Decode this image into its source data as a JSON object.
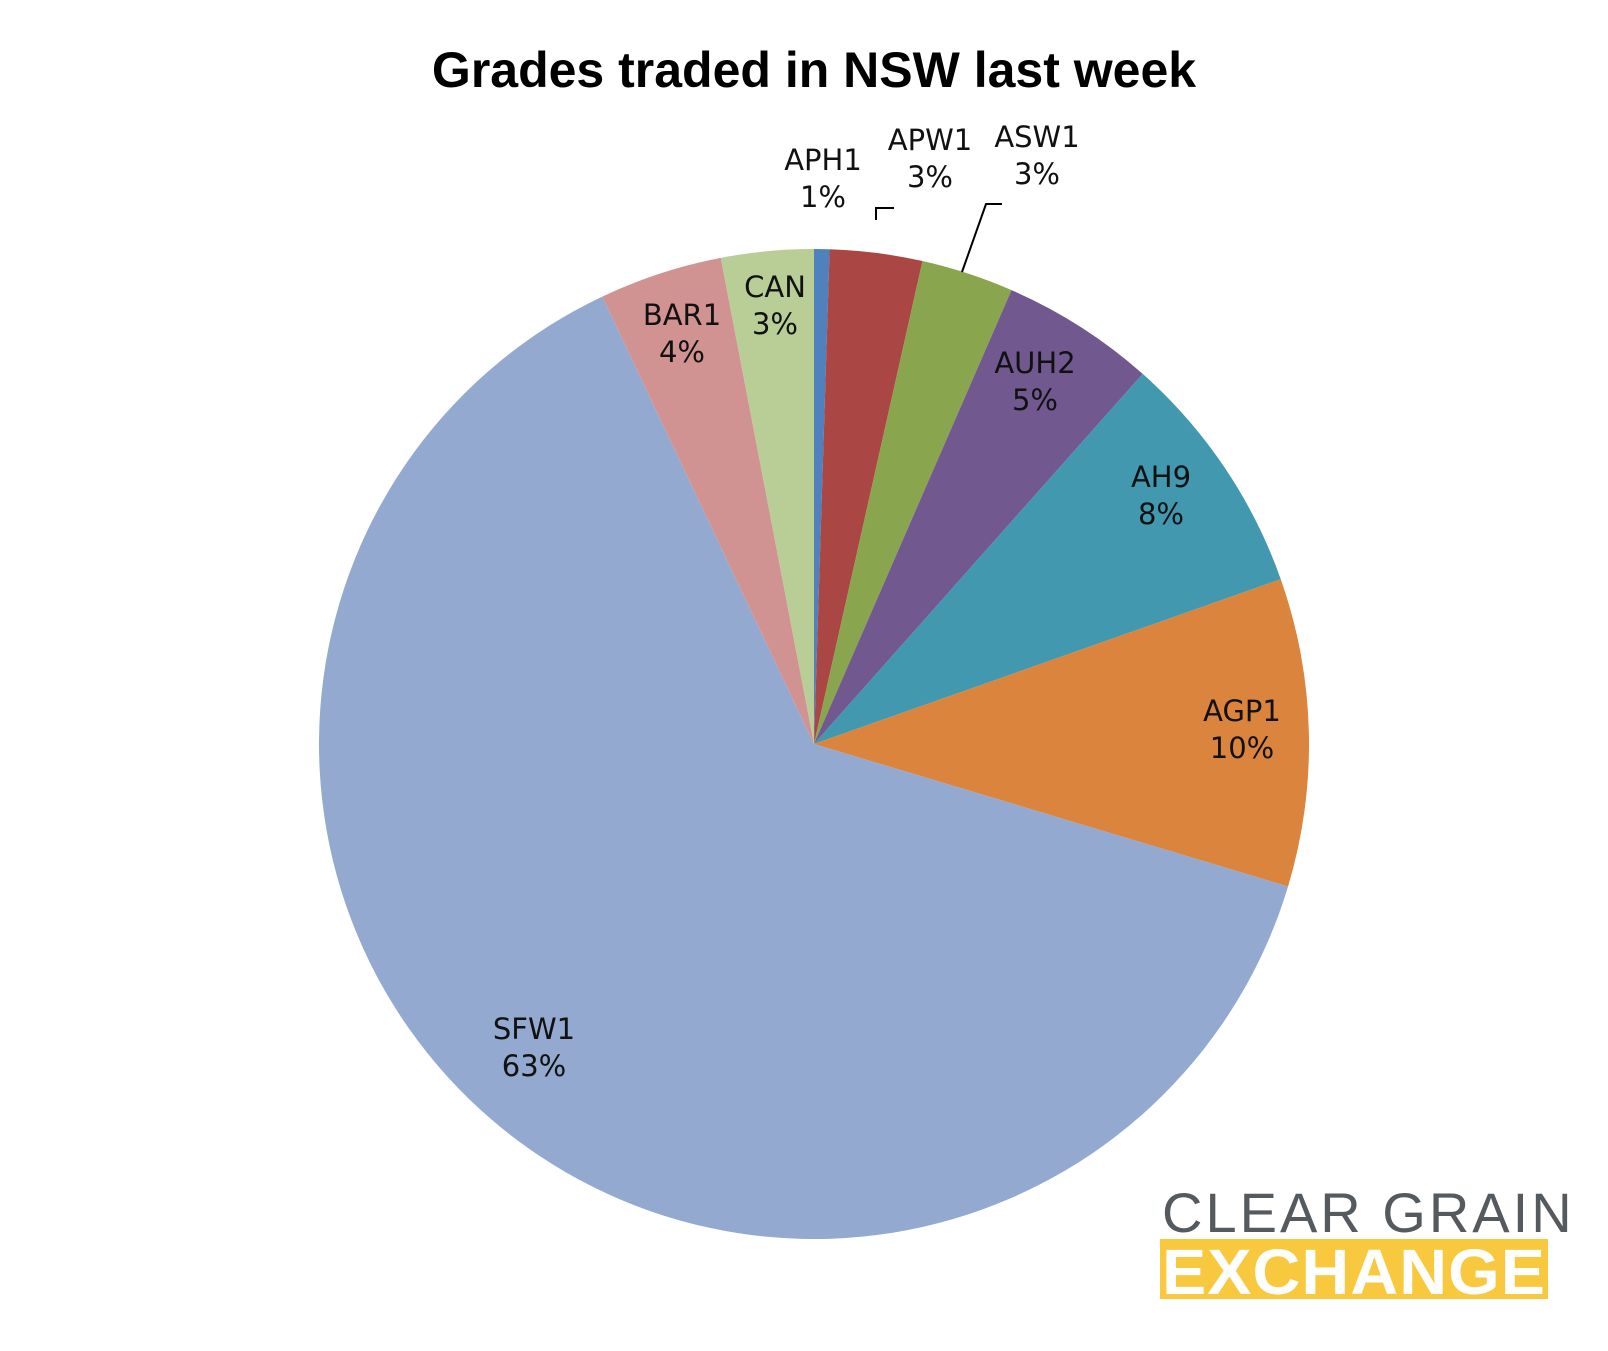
{
  "chart_data": {
    "type": "pie",
    "title": "Grades traded in NSW last week",
    "slices": [
      {
        "label": "APH1",
        "percent_label": "1%",
        "value": 0.5,
        "color": "#4f81bd"
      },
      {
        "label": "APW1",
        "percent_label": "3%",
        "value": 3,
        "color": "#aa4644"
      },
      {
        "label": "ASW1",
        "percent_label": "3%",
        "value": 3,
        "color": "#89a54e"
      },
      {
        "label": "AUH2",
        "percent_label": "5%",
        "value": 5,
        "color": "#71588f"
      },
      {
        "label": "AH9",
        "percent_label": "8%",
        "value": 8,
        "color": "#4198af"
      },
      {
        "label": "AGP1",
        "percent_label": "10%",
        "value": 10,
        "color": "#db843d"
      },
      {
        "label": "SFW1",
        "percent_label": "63%",
        "value": 63,
        "color": "#93a9cf"
      },
      {
        "label": "BAR1",
        "percent_label": "4%",
        "value": 4,
        "color": "#d19392"
      },
      {
        "label": "CAN",
        "percent_label": "3%",
        "value": 3,
        "color": "#b9cd96"
      }
    ],
    "start_angle": "12 o'clock",
    "direction": "clockwise",
    "legend": "none"
  },
  "logo": {
    "line1": "CLEAR GRAIN",
    "line2": "EXCHANGE",
    "color_top": "#555a5f",
    "color_band": "#f8c93e"
  }
}
